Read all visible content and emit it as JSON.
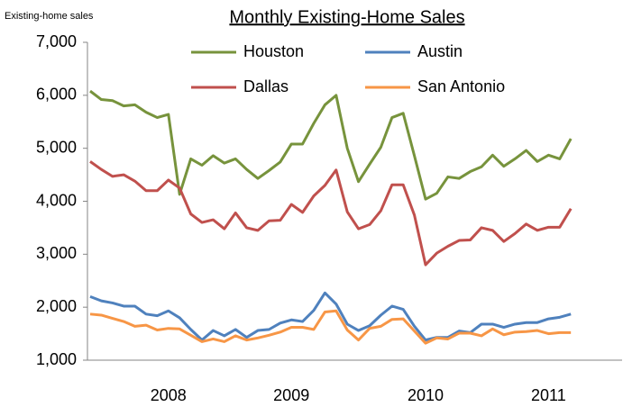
{
  "chart_data": {
    "type": "line",
    "title": "Monthly Existing-Home Sales",
    "y_label": "Existing-home sales",
    "categories": [
      null,
      null,
      null,
      null,
      null,
      null,
      null,
      "2008",
      null,
      null,
      null,
      null,
      null,
      null,
      null,
      null,
      null,
      null,
      "2009",
      null,
      null,
      null,
      null,
      null,
      null,
      null,
      null,
      null,
      null,
      null,
      "2010",
      null,
      null,
      null,
      null,
      null,
      null,
      null,
      null,
      null,
      null,
      "2011",
      null,
      null
    ],
    "series": [
      {
        "name": "Houston",
        "color": "#77933c",
        "values": [
          6080,
          5920,
          5900,
          5800,
          5820,
          5680,
          5580,
          5640,
          4130,
          4800,
          4680,
          4860,
          4720,
          4800,
          4600,
          4430,
          4580,
          4740,
          5080,
          5080,
          5470,
          5820,
          6000,
          5000,
          4370,
          4700,
          5020,
          5580,
          5660,
          4860,
          4040,
          4150,
          4460,
          4430,
          4560,
          4650,
          4870,
          4660,
          4800,
          4960,
          4750,
          4870,
          4800,
          5180
        ]
      },
      {
        "name": "Austin",
        "color": "#4f81bd",
        "values": [
          2200,
          2120,
          2080,
          2020,
          2020,
          1870,
          1840,
          1930,
          1800,
          1580,
          1380,
          1560,
          1460,
          1580,
          1430,
          1560,
          1580,
          1700,
          1760,
          1730,
          1940,
          2270,
          2060,
          1680,
          1560,
          1650,
          1850,
          2020,
          1960,
          1640,
          1380,
          1430,
          1430,
          1550,
          1520,
          1680,
          1680,
          1620,
          1680,
          1710,
          1710,
          1780,
          1810,
          1870
        ]
      },
      {
        "name": "Dallas",
        "color": "#c0504d",
        "values": [
          4750,
          4600,
          4470,
          4500,
          4380,
          4200,
          4200,
          4400,
          4250,
          3760,
          3600,
          3650,
          3480,
          3780,
          3500,
          3450,
          3630,
          3640,
          3940,
          3790,
          4100,
          4300,
          4590,
          3800,
          3480,
          3560,
          3820,
          4310,
          4310,
          3740,
          2800,
          3020,
          3150,
          3260,
          3270,
          3500,
          3450,
          3240,
          3390,
          3570,
          3450,
          3510,
          3510,
          3860
        ]
      },
      {
        "name": "San Antonio",
        "color": "#f79646",
        "values": [
          1870,
          1850,
          1790,
          1730,
          1640,
          1660,
          1570,
          1600,
          1590,
          1470,
          1350,
          1400,
          1350,
          1460,
          1380,
          1420,
          1470,
          1530,
          1620,
          1620,
          1580,
          1910,
          1930,
          1570,
          1380,
          1600,
          1640,
          1770,
          1780,
          1550,
          1320,
          1420,
          1400,
          1510,
          1510,
          1460,
          1590,
          1480,
          1530,
          1540,
          1560,
          1500,
          1520,
          1520
        ]
      }
    ],
    "ylim": [
      1000,
      7000
    ],
    "yticks": [
      {
        "value": 1000,
        "label": "1,000"
      },
      {
        "value": 2000,
        "label": "2,000"
      },
      {
        "value": 3000,
        "label": "3,000"
      },
      {
        "value": 4000,
        "label": "4,000"
      },
      {
        "value": 5000,
        "label": "5,000"
      },
      {
        "value": 6000,
        "label": "6,000"
      },
      {
        "value": 7000,
        "label": "7,000"
      }
    ],
    "grid": false
  }
}
